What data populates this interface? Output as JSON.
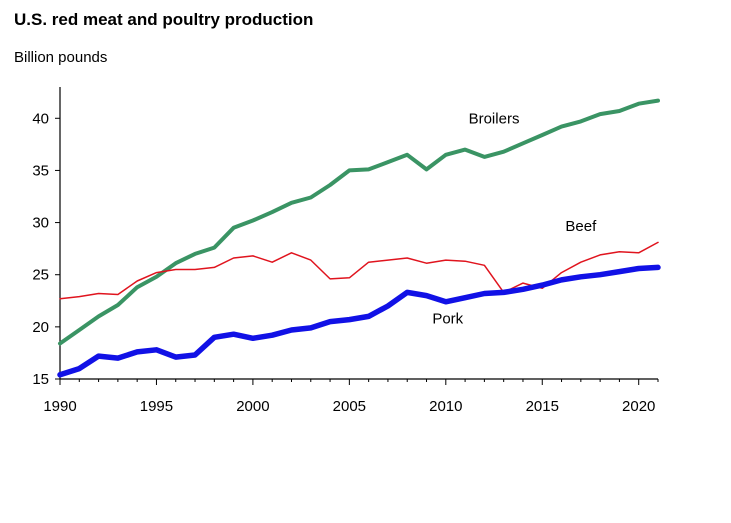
{
  "chart_data": {
    "type": "line",
    "title": "U.S. red meat and poultry production",
    "ylabel": "Billion pounds",
    "xlabel": "",
    "xlim": [
      1990,
      2021
    ],
    "ylim": [
      15,
      43
    ],
    "xticks": [
      1990,
      1995,
      2000,
      2005,
      2010,
      2015,
      2020
    ],
    "yticks": [
      15,
      20,
      25,
      30,
      35,
      40
    ],
    "grid": false,
    "x": [
      1990,
      1991,
      1992,
      1993,
      1994,
      1995,
      1996,
      1997,
      1998,
      1999,
      2000,
      2001,
      2002,
      2003,
      2004,
      2005,
      2006,
      2007,
      2008,
      2009,
      2010,
      2011,
      2012,
      2013,
      2014,
      2015,
      2016,
      2017,
      2018,
      2019,
      2020,
      2021
    ],
    "series": [
      {
        "name": "Broilers",
        "color": "#3a9464",
        "values": [
          18.4,
          19.7,
          21.0,
          22.1,
          23.8,
          24.8,
          26.1,
          27.0,
          27.6,
          29.5,
          30.2,
          31.0,
          31.9,
          32.4,
          33.6,
          35.0,
          35.1,
          35.8,
          36.5,
          35.1,
          36.5,
          37.0,
          36.3,
          36.8,
          37.6,
          38.4,
          39.2,
          39.7,
          40.4,
          40.7,
          41.4,
          41.7
        ]
      },
      {
        "name": "Beef",
        "color": "#e0141e",
        "values": [
          22.7,
          22.9,
          23.2,
          23.1,
          24.4,
          25.2,
          25.5,
          25.5,
          25.7,
          26.6,
          26.8,
          26.2,
          27.1,
          26.4,
          24.6,
          24.7,
          26.2,
          26.4,
          26.6,
          26.1,
          26.4,
          26.3,
          25.9,
          23.3,
          24.2,
          23.7,
          25.2,
          26.2,
          26.9,
          27.2,
          27.1,
          28.1
        ]
      },
      {
        "name": "Pork",
        "color": "#1111e6",
        "values": [
          15.4,
          16.0,
          17.2,
          17.0,
          17.6,
          17.8,
          17.1,
          17.3,
          19.0,
          19.3,
          18.9,
          19.2,
          19.7,
          19.9,
          20.5,
          20.7,
          21.0,
          22.0,
          23.3,
          23.0,
          22.4,
          22.8,
          23.2,
          23.3,
          23.6,
          24.0,
          24.5,
          24.8,
          25.0,
          25.3,
          25.6,
          25.7
        ]
      }
    ],
    "series_label_positions": {
      "Broilers": [
        2012.5,
        39.5
      ],
      "Beef": [
        2017,
        29.2
      ],
      "Pork": [
        2010.1,
        20.3
      ]
    }
  }
}
